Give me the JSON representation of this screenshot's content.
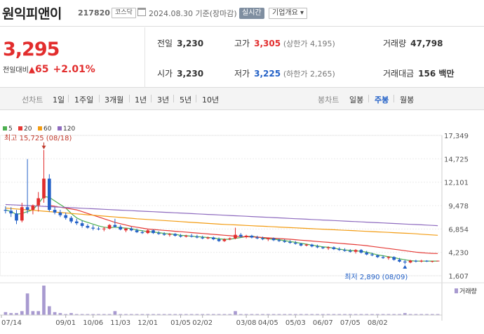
{
  "header": {
    "stock_name": "원익피앤이",
    "stock_code": "217820",
    "market_badge": "코스닥",
    "date_text": "2024.08.30 기준(장마감)",
    "realtime_button": "실시간",
    "company_button": "기업개요 ▾"
  },
  "price": {
    "current": "3,295",
    "change_label": "전일대비",
    "change_value": "65",
    "change_pct": "+2.01%"
  },
  "stats": {
    "prev_close_label": "전일",
    "prev_close": "3,230",
    "high_label": "고가",
    "high": "3,305",
    "upper_limit": "(상한가 4,195)",
    "volume_label": "거래량",
    "volume": "47,798",
    "open_label": "시가",
    "open": "3,230",
    "low_label": "저가",
    "low": "3,225",
    "lower_limit": "(하한가 2,265)",
    "amount_label": "거래대금",
    "amount": "156 백만"
  },
  "tabs": {
    "line_label": "선차트",
    "line_periods": [
      "1일",
      "1주일",
      "3개월",
      "1년",
      "3년",
      "5년",
      "10년"
    ],
    "candle_label": "봉차트",
    "candle_periods": [
      "일봉",
      "주봉",
      "월봉"
    ],
    "active_candle": "주봉"
  },
  "colors": {
    "up": "#e22d2d",
    "down": "#2361c7",
    "ma5": "#4caf50",
    "ma20": "#e53935",
    "ma60": "#f39c12",
    "ma120": "#8e6bbf"
  },
  "chart_data": {
    "type": "candlestick",
    "legend": [
      {
        "name": "5",
        "color": "#4caf50"
      },
      {
        "name": "20",
        "color": "#e53935"
      },
      {
        "name": "60",
        "color": "#f39c12"
      },
      {
        "name": "120",
        "color": "#8e6bbf"
      }
    ],
    "y_ticks": [
      "17,349",
      "14,725",
      "12,101",
      "9,478",
      "6,854",
      "4,230",
      "1,607"
    ],
    "x_ticks": [
      "07/14",
      "09/01",
      "10/06",
      "11/03",
      "12/01",
      "01/05",
      "02/02",
      "03/08",
      "04/05",
      "05/03",
      "06/07",
      "07/05",
      "08/02"
    ],
    "max_annotation": "최고 15,725 (08/18)",
    "min_annotation": "최저 2,890 (08/09)",
    "volume_label": "거래량",
    "ylim": [
      1607,
      17349
    ],
    "candles": [
      [
        9000,
        9400,
        8600,
        8900
      ],
      [
        8900,
        9300,
        8200,
        8600
      ],
      [
        8600,
        9000,
        7400,
        7800
      ],
      [
        7800,
        9800,
        7600,
        9300
      ],
      [
        9300,
        14700,
        8600,
        9000
      ],
      [
        9000,
        9600,
        8500,
        9500
      ],
      [
        9500,
        11000,
        8800,
        10300
      ],
      [
        10300,
        15725,
        9800,
        12500
      ],
      [
        12500,
        13000,
        8800,
        9000
      ],
      [
        9000,
        9300,
        8500,
        8700
      ],
      [
        8700,
        9000,
        8200,
        8400
      ],
      [
        8400,
        8700,
        7900,
        8100
      ],
      [
        8100,
        8300,
        7500,
        7700
      ],
      [
        7700,
        8000,
        7300,
        7500
      ],
      [
        7500,
        7800,
        7000,
        7200
      ],
      [
        7200,
        7400,
        6900,
        7000
      ],
      [
        7000,
        7300,
        6700,
        6900
      ],
      [
        6900,
        7100,
        6700,
        6850
      ],
      [
        6850,
        7100,
        6600,
        6900
      ],
      [
        6900,
        7400,
        6800,
        7300
      ],
      [
        7300,
        8000,
        7000,
        7100
      ],
      [
        7100,
        7300,
        6700,
        6800
      ],
      [
        6700,
        7000,
        6500,
        6900
      ],
      [
        6900,
        7100,
        6600,
        6700
      ],
      [
        6700,
        6900,
        6400,
        6500
      ],
      [
        6500,
        6700,
        6300,
        6400
      ],
      [
        6400,
        6800,
        6300,
        6700
      ],
      [
        6700,
        6800,
        6300,
        6400
      ],
      [
        6400,
        6600,
        6200,
        6300
      ],
      [
        6300,
        6500,
        6100,
        6200
      ],
      [
        6200,
        6400,
        6000,
        6300
      ],
      [
        6300,
        6400,
        6000,
        6100
      ],
      [
        6100,
        6300,
        5900,
        6000
      ],
      [
        6000,
        6200,
        5900,
        6100
      ],
      [
        6100,
        6300,
        5900,
        6000
      ],
      [
        6000,
        6200,
        5800,
        5900
      ],
      [
        5900,
        6100,
        5700,
        5800
      ],
      [
        5800,
        6000,
        5700,
        5900
      ],
      [
        5900,
        6000,
        5600,
        5700
      ],
      [
        5700,
        5900,
        5400,
        5500
      ],
      [
        5500,
        5800,
        5400,
        5700
      ],
      [
        5700,
        5900,
        5600,
        5800
      ],
      [
        5800,
        7000,
        5700,
        6200
      ],
      [
        6200,
        6400,
        5900,
        6000
      ],
      [
        6000,
        6200,
        5800,
        6100
      ],
      [
        6100,
        6200,
        5800,
        5900
      ],
      [
        5900,
        6100,
        5700,
        5800
      ],
      [
        5800,
        6000,
        5600,
        5700
      ],
      [
        5700,
        5900,
        5500,
        5800
      ],
      [
        5800,
        5900,
        5500,
        5600
      ],
      [
        5600,
        5800,
        5400,
        5500
      ],
      [
        5500,
        5700,
        5300,
        5400
      ],
      [
        5400,
        5600,
        5200,
        5300
      ],
      [
        5300,
        5500,
        5100,
        5200
      ],
      [
        5200,
        5300,
        4900,
        5000
      ],
      [
        5000,
        5200,
        4900,
        5100
      ],
      [
        5100,
        5200,
        4800,
        4900
      ],
      [
        4900,
        5100,
        4700,
        4800
      ],
      [
        4800,
        4900,
        4600,
        4700
      ],
      [
        4700,
        4900,
        4500,
        4800
      ],
      [
        4800,
        4900,
        4500,
        4600
      ],
      [
        4600,
        4800,
        4400,
        4500
      ],
      [
        4500,
        4700,
        4300,
        4400
      ],
      [
        4400,
        4600,
        4200,
        4300
      ],
      [
        4300,
        4600,
        4100,
        4500
      ],
      [
        4500,
        4600,
        4100,
        4200
      ],
      [
        4200,
        4400,
        3900,
        4000
      ],
      [
        4000,
        4200,
        3800,
        3900
      ],
      [
        3900,
        4000,
        3600,
        3700
      ],
      [
        3700,
        3900,
        3500,
        3600
      ],
      [
        3600,
        3800,
        3400,
        3700
      ],
      [
        3700,
        3800,
        3300,
        3400
      ],
      [
        3400,
        3600,
        3100,
        3200
      ],
      [
        3200,
        3400,
        2890,
        3100
      ],
      [
        3100,
        3400,
        3000,
        3300
      ],
      [
        3300,
        3400,
        3100,
        3200
      ],
      [
        3200,
        3400,
        3100,
        3300
      ],
      [
        3300,
        3350,
        3150,
        3200
      ],
      [
        3200,
        3300,
        3100,
        3250
      ],
      [
        3230,
        3305,
        3225,
        3295
      ]
    ],
    "ma": {
      "5": [
        9000,
        8800,
        8500,
        8600,
        8800,
        9000,
        9700,
        10500,
        10400,
        10000,
        9600,
        9200,
        8600,
        8100,
        7800,
        7600,
        7400,
        7200,
        7050,
        7000,
        7050,
        7000,
        6950,
        6900,
        6750,
        6650,
        6550,
        6500,
        6450,
        6350,
        6300,
        6250,
        6150,
        6100,
        6050,
        6000,
        5950,
        5900,
        5850,
        5750,
        5700,
        5700,
        5800,
        5900,
        6000,
        6050,
        5950,
        5850,
        5750,
        5700,
        5650,
        5550,
        5450,
        5350,
        5250,
        5150,
        5050,
        4950,
        4850,
        4800,
        4700,
        4600,
        4500,
        4450,
        4400,
        4350,
        4250,
        4100,
        3950,
        3850,
        3750,
        3650,
        3500,
        3400,
        3300,
        3250,
        3250,
        3250,
        3250,
        3250
      ],
      "20": [
        null,
        null,
        null,
        null,
        null,
        null,
        null,
        null,
        9500,
        9400,
        9300,
        9200,
        9100,
        9000,
        8800,
        8600,
        8400,
        8200,
        8000,
        7800,
        7600,
        7450,
        7300,
        7150,
        7050,
        6950,
        6850,
        6800,
        6750,
        6700,
        6650,
        6600,
        6550,
        6500,
        6450,
        6400,
        6350,
        6300,
        6250,
        6200,
        6150,
        6100,
        6050,
        6000,
        5980,
        5960,
        5940,
        5900,
        5860,
        5820,
        5780,
        5740,
        5700,
        5650,
        5600,
        5550,
        5500,
        5450,
        5400,
        5350,
        5300,
        5250,
        5200,
        5150,
        5100,
        5050,
        4980,
        4900,
        4820,
        4740,
        4660,
        4580,
        4500,
        4420,
        4340,
        4260,
        4200,
        4150,
        4120,
        4100
      ],
      "60": [
        9200,
        9150,
        9100,
        9050,
        9000,
        8950,
        8900,
        8850,
        8800,
        8750,
        8700,
        8650,
        8600,
        8550,
        8500,
        8450,
        8400,
        8350,
        8300,
        8250,
        8200,
        8150,
        8100,
        8050,
        8000,
        7960,
        7920,
        7880,
        7840,
        7800,
        7760,
        7720,
        7680,
        7640,
        7600,
        7560,
        7520,
        7480,
        7440,
        7400,
        7370,
        7340,
        7310,
        7280,
        7250,
        7220,
        7190,
        7160,
        7130,
        7100,
        7070,
        7040,
        7010,
        6980,
        6950,
        6920,
        6890,
        6860,
        6830,
        6800,
        6770,
        6740,
        6710,
        6680,
        6650,
        6620,
        6590,
        6560,
        6530,
        6500,
        6470,
        6440,
        6410,
        6380,
        6350,
        6310,
        6270,
        6230,
        6190,
        6150
      ],
      "120": [
        9600,
        9570,
        9540,
        9510,
        9480,
        9450,
        9420,
        9390,
        9360,
        9330,
        9300,
        9270,
        9240,
        9210,
        9180,
        9150,
        9120,
        9090,
        9060,
        9030,
        9000,
        8970,
        8940,
        8910,
        8880,
        8850,
        8820,
        8790,
        8760,
        8730,
        8700,
        8670,
        8640,
        8610,
        8580,
        8550,
        8520,
        8490,
        8460,
        8430,
        8400,
        8370,
        8340,
        8310,
        8280,
        8250,
        8220,
        8190,
        8160,
        8130,
        8100,
        8070,
        8040,
        8010,
        7980,
        7950,
        7920,
        7890,
        7860,
        7830,
        7800,
        7770,
        7740,
        7710,
        7680,
        7650,
        7620,
        7590,
        7560,
        7530,
        7500,
        7470,
        7440,
        7410,
        7380,
        7350,
        7320,
        7290,
        7260,
        7230
      ]
    },
    "volume": [
      3,
      2,
      2,
      4,
      22,
      4,
      4,
      30,
      9,
      3,
      2,
      1,
      2,
      1,
      1,
      1,
      1,
      1,
      1,
      1,
      4,
      1,
      1,
      1,
      1,
      1,
      1,
      1,
      1,
      1,
      1,
      1,
      1,
      1,
      1,
      1,
      1,
      1,
      1,
      1,
      1,
      1,
      4,
      1,
      1,
      1,
      1,
      1,
      1,
      1,
      1,
      1,
      1,
      1,
      1,
      1,
      1,
      1,
      1,
      1,
      1,
      1,
      1,
      1,
      1,
      1,
      1,
      1,
      1,
      1,
      1,
      1,
      1,
      2,
      1,
      1,
      1,
      1,
      1,
      1
    ]
  }
}
